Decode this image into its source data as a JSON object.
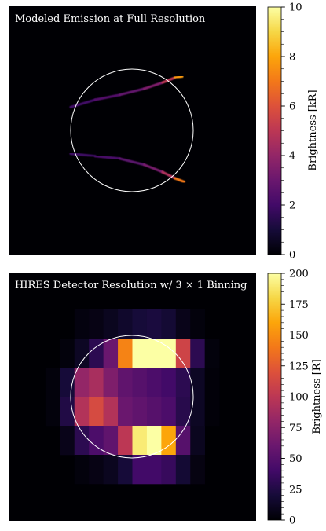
{
  "chart_data": [
    {
      "type": "heatmap",
      "title": "Modeled Emission at Full Resolution",
      "colorbar": {
        "label": "Brightness [kR]",
        "range": [
          0,
          10
        ],
        "ticks": [
          "0",
          "2",
          "4",
          "6",
          "8",
          "10"
        ],
        "tick_values": [
          0,
          2,
          4,
          6,
          8,
          10
        ]
      },
      "colormap": "inferno",
      "features": {
        "upper_arc": [
          [
            -1.0,
            0.38,
            1.8
          ],
          [
            -0.6,
            0.5,
            2.2
          ],
          [
            -0.2,
            0.58,
            2.6
          ],
          [
            0.2,
            0.68,
            3.0
          ],
          [
            0.5,
            0.78,
            4.0
          ],
          [
            0.7,
            0.86,
            6.0
          ],
          [
            0.82,
            0.88,
            9.5
          ]
        ],
        "lower_arc": [
          [
            -1.0,
            -0.38,
            1.8
          ],
          [
            -0.6,
            -0.42,
            2.0
          ],
          [
            -0.2,
            -0.46,
            2.4
          ],
          [
            0.2,
            -0.56,
            2.8
          ],
          [
            0.5,
            -0.68,
            3.8
          ],
          [
            0.7,
            -0.78,
            5.5
          ],
          [
            0.85,
            -0.84,
            8.5
          ]
        ]
      },
      "grid": false
    },
    {
      "type": "heatmap",
      "title": "HIRES Detector Resolution w/ 3 × 1 Binning",
      "colorbar": {
        "label": "Brightness [R]",
        "range": [
          0,
          200
        ],
        "ticks": [
          "0",
          "25",
          "50",
          "75",
          "100",
          "125",
          "150",
          "175",
          "200"
        ],
        "tick_values": [
          0,
          25,
          50,
          75,
          100,
          125,
          150,
          175,
          200
        ]
      },
      "colormap": "inferno",
      "values": [
        [
          0,
          0,
          0,
          0,
          0,
          0,
          0,
          0,
          0,
          0,
          0,
          0,
          0,
          0,
          0,
          0
        ],
        [
          0,
          0,
          0,
          0,
          4,
          6,
          10,
          15,
          20,
          22,
          18,
          8,
          3,
          0,
          0,
          0
        ],
        [
          0,
          0,
          0,
          3,
          12,
          30,
          60,
          145,
          200,
          200,
          200,
          110,
          30,
          3,
          0,
          0
        ],
        [
          0,
          0,
          3,
          20,
          80,
          90,
          70,
          55,
          50,
          45,
          40,
          30,
          12,
          2,
          0,
          0
        ],
        [
          0,
          0,
          3,
          25,
          95,
          115,
          95,
          60,
          55,
          50,
          45,
          28,
          12,
          2,
          0,
          0
        ],
        [
          0,
          0,
          0,
          8,
          30,
          45,
          55,
          100,
          190,
          200,
          160,
          50,
          10,
          0,
          0,
          0
        ],
        [
          0,
          0,
          0,
          0,
          3,
          6,
          10,
          20,
          40,
          40,
          35,
          18,
          5,
          0,
          0,
          0
        ],
        [
          0,
          0,
          0,
          0,
          0,
          0,
          0,
          0,
          0,
          0,
          0,
          0,
          0,
          0,
          0,
          0
        ]
      ],
      "grid": false
    }
  ]
}
